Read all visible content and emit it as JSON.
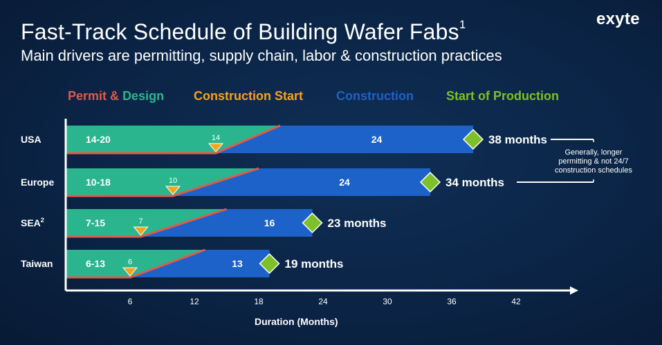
{
  "title": "Fast-Track Schedule of Building Wafer Fabs",
  "title_sup": "1",
  "subtitle": "Main drivers are permitting, supply chain, labor & construction practices",
  "logo": "exyte",
  "legend": {
    "permit_word": "Permit",
    "amp": "&",
    "design_word": "Design",
    "construction_start": "Construction Start",
    "construction": "Construction",
    "start_of_production": "Start of Production"
  },
  "colors": {
    "permit": "#e05a4a",
    "design": "#2bb58e",
    "construction_start": "#f4a41c",
    "construction": "#1d62c8",
    "production": "#7dc02a"
  },
  "chart_data": {
    "type": "bar",
    "title": "Fast-Track Schedule of Building Wafer Fabs",
    "xlabel": "Duration (Months)",
    "xlim": [
      0,
      48
    ],
    "xticks": [
      6,
      12,
      18,
      24,
      30,
      36,
      42
    ],
    "categories": [
      "USA",
      "Europe",
      "SEA",
      "Taiwan"
    ],
    "category_sup": [
      "",
      "",
      "2",
      ""
    ],
    "series": [
      {
        "name": "Permit & Design",
        "ranges": [
          "14-20",
          "10-18",
          "7-15",
          "6-13"
        ],
        "start": [
          0,
          0,
          0,
          0
        ],
        "end": [
          20,
          18,
          15,
          13
        ]
      },
      {
        "name": "Construction Start",
        "values": [
          14,
          10,
          7,
          6
        ]
      },
      {
        "name": "Construction",
        "values": [
          24,
          24,
          16,
          13
        ]
      },
      {
        "name": "Start of Production",
        "values": [
          38,
          34,
          23,
          19
        ],
        "labels": [
          "38 months",
          "34 months",
          "23 months",
          "19 months"
        ]
      }
    ],
    "annotation": [
      "Generally, longer",
      "permitting & not 24/7",
      "construction schedules"
    ]
  }
}
